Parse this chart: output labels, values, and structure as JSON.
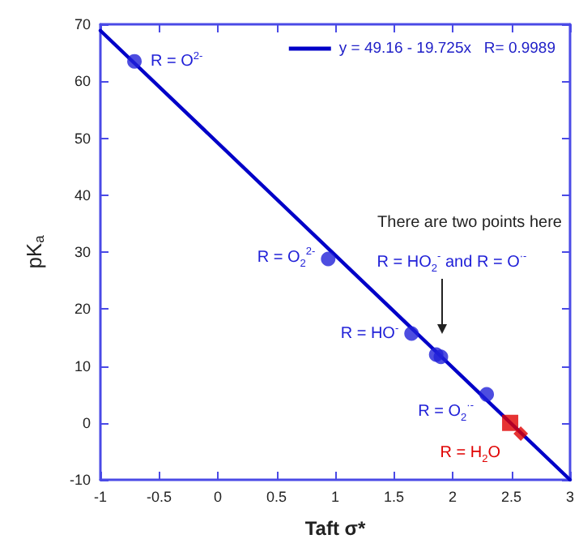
{
  "chart_data": {
    "type": "scatter",
    "xlabel": "Taft σ*",
    "ylabel": "pK$_{a}$",
    "xlim": [
      -1,
      3
    ],
    "ylim": [
      -10,
      70
    ],
    "xticks": [
      -1,
      -0.5,
      0,
      0.5,
      1,
      1.5,
      2,
      2.5,
      3
    ],
    "yticks": [
      -10,
      0,
      10,
      20,
      30,
      40,
      50,
      60,
      70
    ],
    "grid": false,
    "legend": "top right",
    "series": [
      {
        "type": "line",
        "name": "y = 49.16 - 19.725x   R= 0.9989",
        "color": "#0000c8",
        "x": [
          -1,
          3
        ],
        "values": [
          68.9,
          -10.0
        ],
        "marker": "none"
      },
      {
        "color": "#2020d8",
        "x": [
          -0.71,
          0.94,
          1.65,
          1.86,
          1.9,
          2.29
        ],
        "values": [
          63.5,
          28.8,
          15.7,
          12.0,
          11.6,
          5.0
        ],
        "marker": "circle"
      },
      {
        "color": "#e00000",
        "x": [
          2.49
        ],
        "values": [
          0
        ],
        "marker": "square"
      },
      {
        "color": "#e00000",
        "x": [
          2.58
        ],
        "values": [
          -1.9
        ],
        "marker": "diamond"
      }
    ],
    "annotations": [
      {
        "text": "R = O$^{2-}$",
        "x": -0.71,
        "y": 63.5
      },
      {
        "text": "R = O$_{2}$$^{2-}$",
        "x": 0.94,
        "y": 28.8
      },
      {
        "text": "R = HO$^{-}$",
        "x": 1.65,
        "y": 15.7
      },
      {
        "text": "R = O$_{2}$$^{·-}$",
        "x": 2.29,
        "y": 5.0
      },
      {
        "text": "R = H$_{2}$O",
        "x": 2.49,
        "y": 0
      },
      "There are two points here",
      "R = HO$_{2}$$^{-}$ and R = O$^{·-}$"
    ]
  }
}
